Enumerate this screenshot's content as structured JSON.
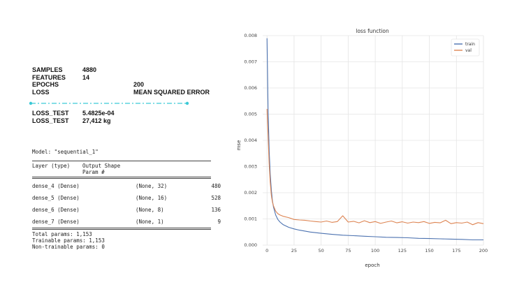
{
  "stats": {
    "rows": [
      {
        "key": "SAMPLES",
        "value": "4880",
        "offset": 72
      },
      {
        "key": "FEATURES",
        "value": "14",
        "offset": 72
      },
      {
        "key": "EPOCHS",
        "value": "200",
        "offset": 145
      },
      {
        "key": "LOSS",
        "value": "MEAN SQUARED ERROR",
        "offset": 145
      }
    ],
    "results": [
      {
        "key": "LOSS_TEST",
        "value": "5.4825e-04"
      },
      {
        "key": "LOSS_TEST",
        "value": "27,412 kg"
      }
    ],
    "divider_color": "#3cc9d6"
  },
  "summary": {
    "model_line": "Model: \"sequential_1\"",
    "headers": {
      "layer": "Layer (type)",
      "shape": "Output Shape",
      "params": "Param #"
    },
    "layers": [
      {
        "name": "dense_4 (Dense)",
        "shape": "(None, 32)",
        "params": "480"
      },
      {
        "name": "dense_5 (Dense)",
        "shape": "(None, 16)",
        "params": "528"
      },
      {
        "name": "dense_6 (Dense)",
        "shape": "(None, 8)",
        "params": "136"
      },
      {
        "name": "dense_7 (Dense)",
        "shape": "(None, 1)",
        "params": "9"
      }
    ],
    "totals": [
      "Total params: 1,153",
      "Trainable params: 1,153",
      "Non-trainable params: 0"
    ]
  },
  "chart_data": {
    "type": "line",
    "title": "loss function",
    "xlabel": "epoch",
    "ylabel": "mse",
    "xlim": [
      -4,
      200
    ],
    "ylim": [
      0,
      0.008
    ],
    "xticks": [
      0,
      25,
      50,
      75,
      100,
      125,
      150,
      175,
      200
    ],
    "xtick_labels": [
      "0",
      "25",
      "50",
      "75",
      "100",
      "125",
      "150",
      "175",
      "200"
    ],
    "yticks": [
      0,
      0.001,
      0.002,
      0.003,
      0.004,
      0.005,
      0.006,
      0.007,
      0.008
    ],
    "ytick_labels": [
      "0.000",
      "0.001",
      "0.002",
      "0.003",
      "0.004",
      "0.005",
      "0.006",
      "0.007",
      "0.008"
    ],
    "grid": true,
    "legend": "top-right",
    "series": [
      {
        "name": "train",
        "color": "#4c72b0",
        "x": [
          0,
          1,
          2,
          3,
          4,
          5,
          6,
          8,
          10,
          12,
          15,
          20,
          25,
          30,
          40,
          50,
          60,
          70,
          80,
          90,
          100,
          110,
          120,
          130,
          140,
          150,
          160,
          170,
          180,
          190,
          200
        ],
        "y": [
          0.0079,
          0.0052,
          0.0036,
          0.0027,
          0.0021,
          0.0017,
          0.00145,
          0.00115,
          0.00098,
          0.00088,
          0.00078,
          0.00068,
          0.00062,
          0.00057,
          0.0005,
          0.00045,
          0.00041,
          0.00038,
          0.00036,
          0.00034,
          0.00032,
          0.0003,
          0.00029,
          0.00028,
          0.00026,
          0.00025,
          0.00024,
          0.00023,
          0.00022,
          0.0002,
          0.0002
        ]
      },
      {
        "name": "val",
        "color": "#dd8452",
        "x": [
          0,
          1,
          2,
          3,
          4,
          5,
          6,
          8,
          10,
          12,
          15,
          20,
          25,
          30,
          35,
          40,
          45,
          50,
          55,
          60,
          65,
          70,
          75,
          80,
          85,
          90,
          95,
          100,
          105,
          110,
          115,
          120,
          125,
          130,
          135,
          140,
          145,
          150,
          155,
          160,
          165,
          170,
          175,
          180,
          185,
          190,
          195,
          200
        ],
        "y": [
          0.0052,
          0.0042,
          0.0031,
          0.0024,
          0.0019,
          0.00165,
          0.0015,
          0.0013,
          0.0012,
          0.00115,
          0.0011,
          0.00105,
          0.00098,
          0.00096,
          0.00095,
          0.00092,
          0.0009,
          0.00088,
          0.00092,
          0.00087,
          0.0009,
          0.00112,
          0.00088,
          0.00091,
          0.00085,
          0.00093,
          0.00086,
          0.0009,
          0.00083,
          0.00088,
          0.00092,
          0.00085,
          0.00089,
          0.00084,
          0.00088,
          0.00086,
          0.0009,
          0.00083,
          0.00087,
          0.00085,
          0.00095,
          0.00082,
          0.00086,
          0.00084,
          0.00088,
          0.00078,
          0.00086,
          0.00082
        ]
      }
    ]
  }
}
